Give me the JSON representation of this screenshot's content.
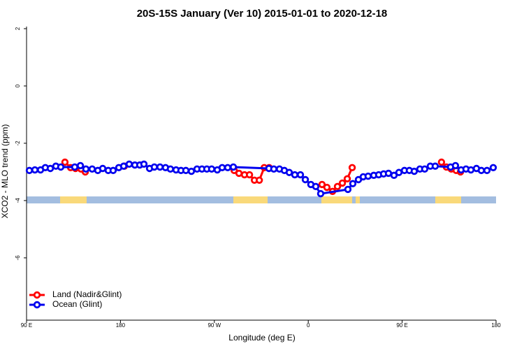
{
  "chart_data": {
    "type": "line",
    "title": "20S-15S January (Ver 10)   2015-01-01 to 2020-12-18",
    "x_label": "Longitude (deg E)",
    "y_label": "XCO2 - MLO trend (ppm)",
    "xlim": [
      90,
      540
    ],
    "xticks": [
      {
        "value": 90,
        "label": "90 E"
      },
      {
        "value": 180,
        "label": "180"
      },
      {
        "value": 270,
        "label": "90 W"
      },
      {
        "value": 360,
        "label": "0"
      },
      {
        "value": 450,
        "label": "90 E"
      },
      {
        "value": 540,
        "label": "180"
      }
    ],
    "ylim": [
      -8.15,
      2
    ],
    "yticks": [
      2,
      0,
      -2,
      -4,
      -6
    ],
    "legend": "bottom-left",
    "series": [
      {
        "name": "Land (Nadir&Glint)",
        "color": "#ff0000",
        "x": [
          126.8,
          132.2,
          136.9,
          142.2,
          146.3,
          null,
          183.8,
          null,
          289,
          293.6,
          298.9,
          303.7,
          308.4,
          313.1,
          317.8,
          322.5,
          null,
          373.2,
          377.9,
          383.3,
          388,
          392.7,
          397.4,
          402.1,
          null,
          487.7,
          492.4,
          497.1,
          501.8,
          505.9
        ],
        "values": [
          -2.66,
          -2.85,
          -2.88,
          -2.9,
          -3.0,
          null,
          -2.8,
          null,
          -2.95,
          -3.05,
          -3.1,
          -3.1,
          -3.29,
          -3.29,
          -2.85,
          -2.85,
          null,
          -3.44,
          -3.54,
          -3.68,
          -3.51,
          -3.39,
          -3.24,
          -2.85,
          null,
          -2.66,
          -2.83,
          -2.9,
          -2.95,
          -3.0
        ]
      },
      {
        "name": "Ocean (Glint)",
        "color": "#0000ee",
        "x": [
          92.7,
          98,
          103.4,
          108,
          112.8,
          118.1,
          122.8,
          136.2,
          141.6,
          146.9,
          152.9,
          158.3,
          163,
          168.3,
          173,
          178.4,
          183.1,
          188.4,
          193.8,
          198.5,
          202.5,
          207.9,
          212.5,
          217.9,
          223.2,
          227.9,
          233.3,
          238,
          242.7,
          248,
          253.4,
          258.1,
          262.8,
          267.4,
          272.8,
          277.5,
          282.8,
          288.2,
          322.3,
          327,
          332.4,
          337.1,
          341.8,
          347.1,
          352.5,
          357.2,
          362.5,
          367.2,
          371.9,
          398,
          402.7,
          408.1,
          412.7,
          417.4,
          422.8,
          427.5,
          432.2,
          436.9,
          442.2,
          446.9,
          452.2,
          456.9,
          461.6,
          467,
          471.6,
          477,
          481.7,
          496.4,
          501.1,
          506.5,
          511.2,
          515.9,
          521.2,
          525.9,
          531.3,
          537.3
        ],
        "values": [
          -2.95,
          -2.93,
          -2.93,
          -2.85,
          -2.88,
          -2.8,
          -2.83,
          -2.83,
          -2.78,
          -2.9,
          -2.9,
          -2.95,
          -2.88,
          -2.95,
          -2.95,
          -2.85,
          -2.8,
          -2.73,
          -2.76,
          -2.76,
          -2.73,
          -2.88,
          -2.83,
          -2.83,
          -2.85,
          -2.9,
          -2.93,
          -2.95,
          -2.95,
          -2.98,
          -2.9,
          -2.9,
          -2.9,
          -2.9,
          -2.93,
          -2.85,
          -2.85,
          -2.83,
          -2.88,
          -2.9,
          -2.9,
          -2.95,
          -3.02,
          -3.1,
          -3.1,
          -3.27,
          -3.44,
          -3.51,
          -3.76,
          -3.61,
          -3.41,
          -3.27,
          -3.17,
          -3.15,
          -3.12,
          -3.1,
          -3.07,
          -3.05,
          -3.12,
          -3.02,
          -2.95,
          -2.95,
          -2.98,
          -2.9,
          -2.9,
          -2.8,
          -2.8,
          -2.83,
          -2.78,
          -2.93,
          -2.9,
          -2.93,
          -2.88,
          -2.95,
          -2.95,
          -2.85
        ]
      }
    ]
  }
}
